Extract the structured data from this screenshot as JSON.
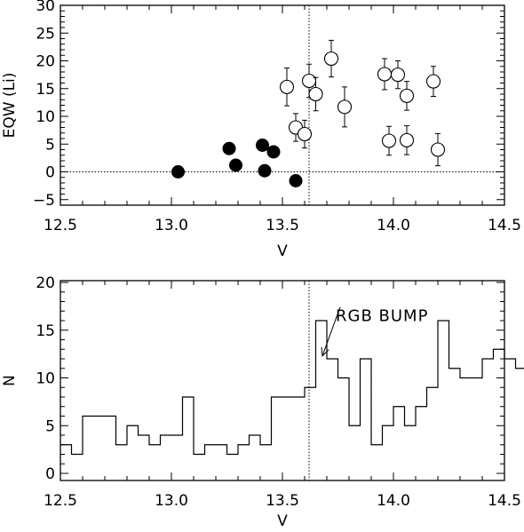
{
  "chart_data": [
    {
      "type": "scatter",
      "xlabel": "V",
      "ylabel": "EQW (Li)",
      "xlim": [
        12.5,
        14.5
      ],
      "ylim": [
        -6,
        30
      ],
      "xticks": [
        "12.5",
        "13.0",
        "13.5",
        "14.0",
        "14.5"
      ],
      "yticks": [
        "−5",
        "0",
        "5",
        "10",
        "15",
        "20",
        "25",
        "30"
      ],
      "hline": 0,
      "vline": 13.62,
      "series": [
        {
          "marker": "filled-circle",
          "points": [
            {
              "x": 13.03,
              "y": 0.0
            },
            {
              "x": 13.26,
              "y": 4.2
            },
            {
              "x": 13.29,
              "y": 1.2
            },
            {
              "x": 13.41,
              "y": 4.8
            },
            {
              "x": 13.42,
              "y": 0.2
            },
            {
              "x": 13.46,
              "y": 3.6
            },
            {
              "x": 13.56,
              "y": -1.6
            }
          ]
        },
        {
          "marker": "open-circle",
          "points": [
            {
              "x": 13.52,
              "y": 15.3,
              "err": 3.4
            },
            {
              "x": 13.56,
              "y": 8.0,
              "err": 2.5
            },
            {
              "x": 13.6,
              "y": 6.8,
              "err": 2.5
            },
            {
              "x": 13.62,
              "y": 16.4,
              "err": 3.0
            },
            {
              "x": 13.65,
              "y": 14.0,
              "err": 3.0
            },
            {
              "x": 13.72,
              "y": 20.4,
              "err": 3.3
            },
            {
              "x": 13.78,
              "y": 11.7,
              "err": 3.6
            },
            {
              "x": 13.96,
              "y": 17.6,
              "err": 2.8
            },
            {
              "x": 13.98,
              "y": 5.6,
              "err": 2.6
            },
            {
              "x": 14.02,
              "y": 17.5,
              "err": 2.5
            },
            {
              "x": 14.06,
              "y": 5.7,
              "err": 2.6
            },
            {
              "x": 14.06,
              "y": 13.7,
              "err": 2.6
            },
            {
              "x": 14.18,
              "y": 16.3,
              "err": 2.7
            },
            {
              "x": 14.2,
              "y": 4.0,
              "err": 2.9
            }
          ]
        }
      ]
    },
    {
      "type": "histogram",
      "xlabel": "V",
      "ylabel": "N",
      "xlim": [
        12.5,
        14.5
      ],
      "ylim": [
        0,
        20
      ],
      "xticks": [
        "12.5",
        "13.0",
        "13.5",
        "14.0",
        "14.5"
      ],
      "yticks": [
        "0",
        "5",
        "10",
        "15",
        "20"
      ],
      "vline": 13.62,
      "bin_start": 12.5,
      "bin_width": 0.05,
      "counts": [
        3,
        2,
        6,
        6,
        6,
        3,
        5,
        4,
        3,
        4,
        4,
        8,
        2,
        3,
        3,
        2,
        3,
        4,
        3,
        8,
        8,
        8,
        9,
        16,
        12,
        10,
        5,
        12,
        3,
        5,
        7,
        5,
        7,
        9,
        16,
        11,
        10,
        10,
        12,
        13,
        12,
        11,
        13,
        10,
        10
      ],
      "annotation": {
        "text": "RGB BUMP",
        "arrow_to": {
          "x": 13.68,
          "y": 12.3
        },
        "text_at": {
          "x": 13.74,
          "y": 16.5
        }
      }
    }
  ]
}
